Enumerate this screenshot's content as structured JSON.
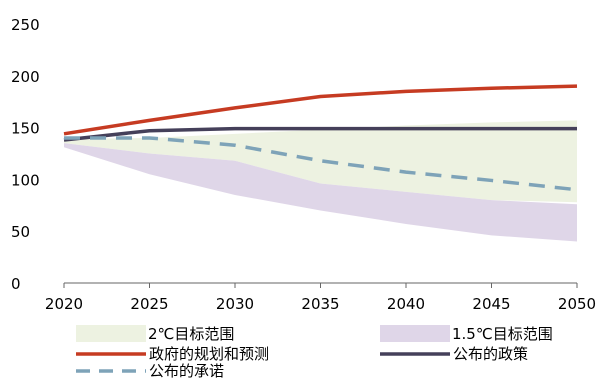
{
  "colors": {
    "band_2c": "#edf2e1",
    "band_15c": "#dfd6e8",
    "gov_projection": "#c63b22",
    "announced_policy": "#45405a",
    "pledges": "#7ea3b8",
    "axis": "#666666"
  },
  "chart_data": {
    "type": "line",
    "title": "",
    "xlabel": "",
    "ylabel": "",
    "x": [
      2020,
      2025,
      2030,
      2035,
      2040,
      2045,
      2050
    ],
    "x_ticks": [
      "2020",
      "2025",
      "2030",
      "2035",
      "2040",
      "2045",
      "2050"
    ],
    "y_ticks": [
      "0",
      "50",
      "100",
      "150",
      "200",
      "250"
    ],
    "xlim": [
      2020,
      2050
    ],
    "ylim": [
      0,
      250
    ],
    "grid": false,
    "legend_position": "bottom",
    "bands": [
      {
        "name": "2℃目标范围",
        "lower": [
          135,
          125,
          118,
          96,
          88,
          80,
          78
        ],
        "upper": [
          139,
          140,
          144,
          148,
          152,
          155,
          157
        ]
      },
      {
        "name": "1.5℃目标范围",
        "lower": [
          131,
          105,
          85,
          70,
          57,
          46,
          40
        ],
        "upper": [
          135,
          125,
          118,
          96,
          88,
          80,
          76
        ]
      }
    ],
    "series": [
      {
        "name": "政府的规划和预测",
        "style": "solid",
        "values": [
          144,
          157,
          169,
          180,
          185,
          188,
          190
        ]
      },
      {
        "name": "公布的政策",
        "style": "solid",
        "values": [
          138,
          147,
          149,
          149,
          149,
          149,
          149
        ]
      },
      {
        "name": "公布的承诺",
        "style": "dashed",
        "values": [
          140,
          140,
          133,
          118,
          107,
          99,
          90
        ]
      }
    ]
  },
  "legend": {
    "band_2c": "2℃目标范围",
    "band_15c": "1.5℃目标范围",
    "gov_projection": "政府的规划和预测",
    "announced_policy": "公布的政策",
    "pledges": "公布的承诺"
  }
}
